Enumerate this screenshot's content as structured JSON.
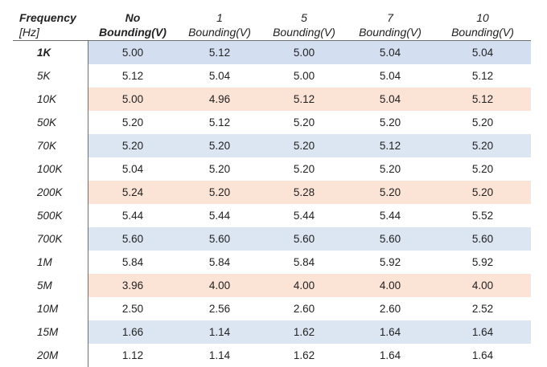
{
  "header": {
    "frequency": "Frequency",
    "unit": "[Hz]",
    "col1_line1": "No",
    "col1_line2": "Bounding(V)",
    "col2_line1": "1",
    "col2_line2": "Bounding(V)",
    "col3_line1": "5",
    "col3_line2": "Bounding(V)",
    "col4_line1": "7",
    "col4_line2": "Bounding(V)",
    "col5_line1": "10",
    "col5_line2": "Bounding(V)"
  },
  "rows": [
    {
      "freq": "1K",
      "v": [
        "5.00",
        "5.12",
        "5.00",
        "5.04",
        "5.04"
      ],
      "shade": "blue"
    },
    {
      "freq": "5K",
      "v": [
        "5.12",
        "5.04",
        "5.00",
        "5.04",
        "5.12"
      ],
      "shade": "none"
    },
    {
      "freq": "10K",
      "v": [
        "5.00",
        "4.96",
        "5.12",
        "5.04",
        "5.12"
      ],
      "shade": "orange"
    },
    {
      "freq": "50K",
      "v": [
        "5.20",
        "5.12",
        "5.20",
        "5.20",
        "5.20"
      ],
      "shade": "none"
    },
    {
      "freq": "70K",
      "v": [
        "5.20",
        "5.20",
        "5.20",
        "5.12",
        "5.20"
      ],
      "shade": "blue"
    },
    {
      "freq": "100K",
      "v": [
        "5.04",
        "5.20",
        "5.20",
        "5.20",
        "5.20"
      ],
      "shade": "none"
    },
    {
      "freq": "200K",
      "v": [
        "5.24",
        "5.20",
        "5.28",
        "5.20",
        "5.20"
      ],
      "shade": "orange"
    },
    {
      "freq": "500K",
      "v": [
        "5.44",
        "5.44",
        "5.44",
        "5.44",
        "5.52"
      ],
      "shade": "none"
    },
    {
      "freq": "700K",
      "v": [
        "5.60",
        "5.60",
        "5.60",
        "5.60",
        "5.60"
      ],
      "shade": "blue"
    },
    {
      "freq": "1M",
      "v": [
        "5.84",
        "5.84",
        "5.84",
        "5.92",
        "5.92"
      ],
      "shade": "none"
    },
    {
      "freq": "5M",
      "v": [
        "3.96",
        "4.00",
        "4.00",
        "4.00",
        "4.00"
      ],
      "shade": "orange"
    },
    {
      "freq": "10M",
      "v": [
        "2.50",
        "2.56",
        "2.60",
        "2.60",
        "2.52"
      ],
      "shade": "none"
    },
    {
      "freq": "15M",
      "v": [
        "1.66",
        "1.14",
        "1.62",
        "1.64",
        "1.64"
      ],
      "shade": "blue"
    },
    {
      "freq": "20M",
      "v": [
        "1.12",
        "1.14",
        "1.62",
        "1.64",
        "1.64"
      ],
      "shade": "none"
    }
  ],
  "colors": {
    "blue_band": "#dce6f2",
    "orange_band": "#fbe3d6",
    "rule": "#6f6f6f"
  }
}
